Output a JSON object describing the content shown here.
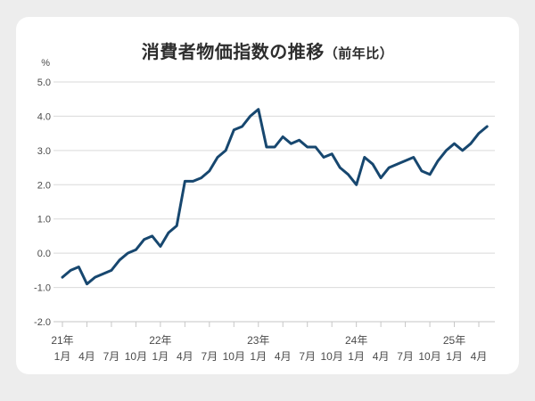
{
  "page": {
    "background_color": "#ededed",
    "card_color": "#ffffff"
  },
  "title": {
    "full": "消費者物価指数の推移（前年比）",
    "main": "消費者物価指数の推移",
    "suffix": "（前年比）"
  },
  "chart_data": {
    "type": "line",
    "title": "消費者物価指数の推移（前年比）",
    "unit_label": "%",
    "ylim": [
      -2.0,
      5.0
    ],
    "y_tick_labels": [
      "5.0",
      "4.0",
      "3.0",
      "2.0",
      "1.0",
      "0.0",
      "-1.0",
      "-2.0"
    ],
    "grid": true,
    "legend_position": "none",
    "x_months": [
      "2021-01",
      "2021-02",
      "2021-03",
      "2021-04",
      "2021-05",
      "2021-06",
      "2021-07",
      "2021-08",
      "2021-09",
      "2021-10",
      "2021-11",
      "2021-12",
      "2022-01",
      "2022-02",
      "2022-03",
      "2022-04",
      "2022-05",
      "2022-06",
      "2022-07",
      "2022-08",
      "2022-09",
      "2022-10",
      "2022-11",
      "2022-12",
      "2023-01",
      "2023-02",
      "2023-03",
      "2023-04",
      "2023-05",
      "2023-06",
      "2023-07",
      "2023-08",
      "2023-09",
      "2023-10",
      "2023-11",
      "2023-12",
      "2024-01",
      "2024-02",
      "2024-03",
      "2024-04",
      "2024-05",
      "2024-06",
      "2024-07",
      "2024-08",
      "2024-09",
      "2024-10",
      "2024-11",
      "2024-12",
      "2025-01",
      "2025-02",
      "2025-03",
      "2025-04",
      "2025-05"
    ],
    "series": [
      {
        "name": "消費者物価指数（前年比）",
        "values": [
          -0.7,
          -0.5,
          -0.4,
          -0.9,
          -0.7,
          -0.6,
          -0.5,
          -0.2,
          0.0,
          0.1,
          0.4,
          0.5,
          0.2,
          0.6,
          0.8,
          2.1,
          2.1,
          2.2,
          2.4,
          2.8,
          3.0,
          3.6,
          3.7,
          4.0,
          4.2,
          3.1,
          3.1,
          3.4,
          3.2,
          3.3,
          3.1,
          3.1,
          2.8,
          2.9,
          2.5,
          2.3,
          2.0,
          2.8,
          2.6,
          2.2,
          2.5,
          2.6,
          2.7,
          2.8,
          2.4,
          2.3,
          2.7,
          3.0,
          3.2,
          3.0,
          3.2,
          3.5,
          3.7
        ]
      }
    ],
    "x_axis": {
      "quarter_tick_month_indices": [
        0,
        3,
        6,
        9,
        12,
        15,
        18,
        21,
        24,
        27,
        30,
        33,
        36,
        39,
        42,
        45,
        48,
        51
      ],
      "quarter_tick_labels": [
        "1月",
        "4月",
        "7月",
        "10月",
        "1月",
        "4月",
        "7月",
        "10月",
        "1月",
        "4月",
        "7月",
        "10月",
        "1月",
        "4月",
        "7月",
        "10月",
        "1月",
        "4月"
      ],
      "year_tick_labels": [
        {
          "label": "21年",
          "month_index": 0
        },
        {
          "label": "22年",
          "month_index": 12
        },
        {
          "label": "23年",
          "month_index": 24
        },
        {
          "label": "24年",
          "month_index": 36
        },
        {
          "label": "25年",
          "month_index": 48
        }
      ]
    },
    "colors": {
      "line": "#17476f",
      "grid": "#d9d9d9",
      "axis": "#c6c6c6",
      "tick_text": "#4a4a4a",
      "title_text": "#2d2d2d"
    }
  }
}
